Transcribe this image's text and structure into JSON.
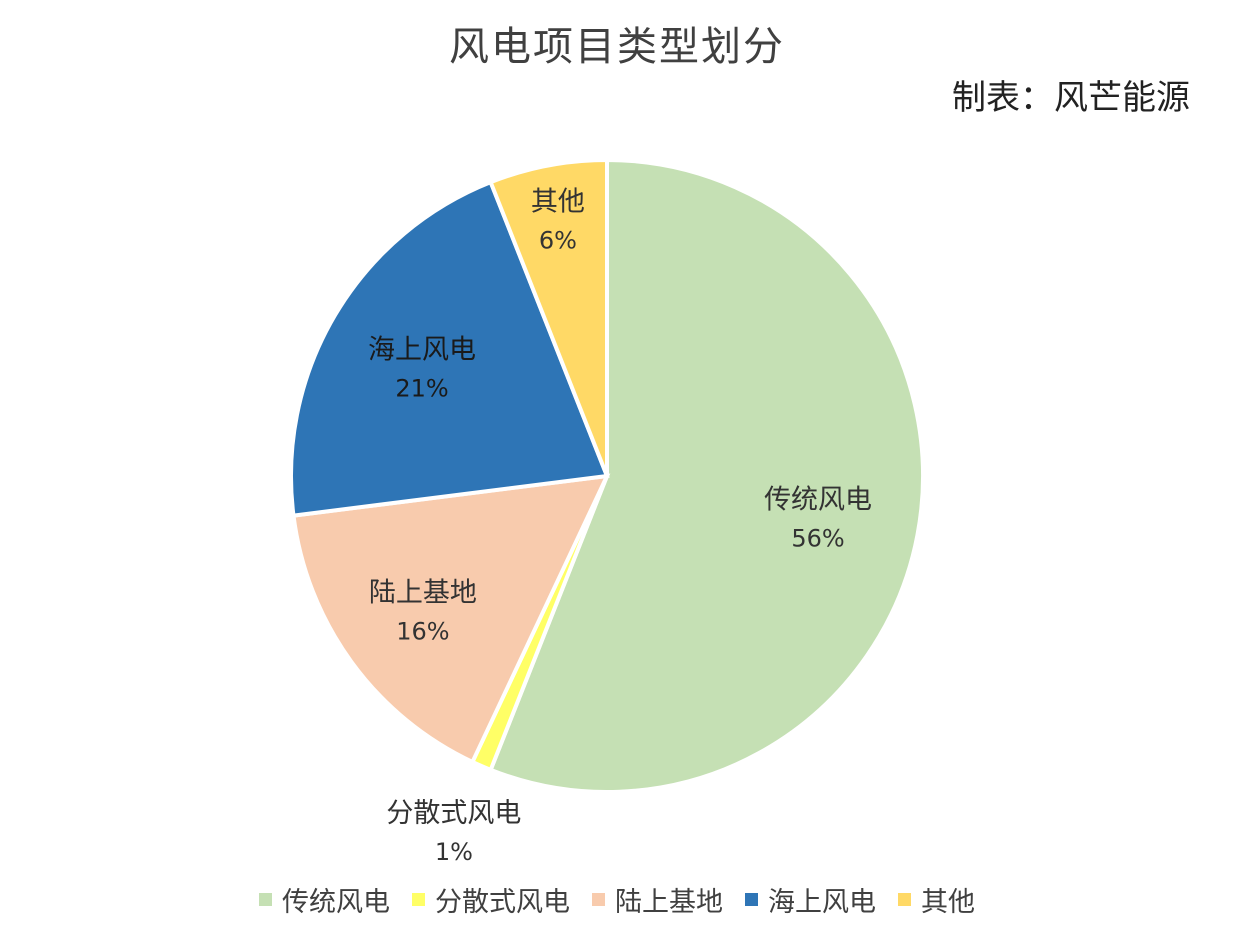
{
  "chart_data": {
    "type": "pie",
    "title": "风电项目类型划分",
    "source_note": "制表：风芒能源",
    "slices": [
      {
        "name": "传统风电",
        "value": 56,
        "label": "56%",
        "color": "#c5e0b4"
      },
      {
        "name": "分散式风电",
        "value": 1,
        "label": "1%",
        "color": "#ffff66"
      },
      {
        "name": "陆上基地",
        "value": 16,
        "label": "16%",
        "color": "#f8cbad"
      },
      {
        "name": "海上风电",
        "value": 21,
        "label": "21%",
        "color": "#2e75b6"
      },
      {
        "name": "其他",
        "value": 6,
        "label": "6%",
        "color": "#ffd966"
      }
    ],
    "legend_position": "bottom",
    "data_labels": "category-and-percent"
  }
}
